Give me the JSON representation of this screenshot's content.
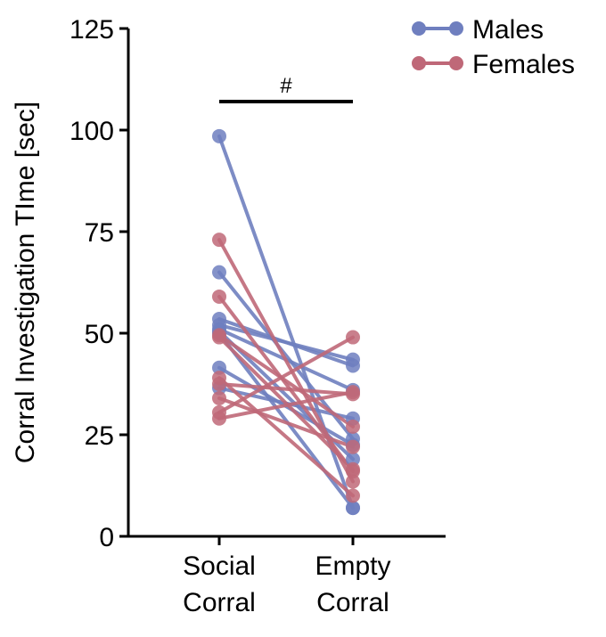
{
  "chart_data": {
    "type": "line",
    "title": "",
    "xlabel": "",
    "ylabel": "Corral Investigation TIme [sec]",
    "categories": [
      {
        "line1": "Social",
        "line2": "Corral"
      },
      {
        "line1": "Empty",
        "line2": "Corral"
      }
    ],
    "ylim": [
      0,
      125
    ],
    "yticks": [
      0,
      25,
      50,
      75,
      100,
      125
    ],
    "legend_position": "top-right",
    "significance": {
      "label": "#",
      "between": [
        0,
        1
      ]
    },
    "series": [
      {
        "name": "Males",
        "color": "#6f7fbf",
        "pairs": [
          [
            98.5,
            7
          ],
          [
            65,
            24
          ],
          [
            53.5,
            42
          ],
          [
            52,
            43.5
          ],
          [
            51,
            36
          ],
          [
            50.5,
            19
          ],
          [
            50,
            7
          ],
          [
            41.5,
            22.5
          ],
          [
            36.5,
            29
          ]
        ]
      },
      {
        "name": "Females",
        "color": "#bf6878",
        "pairs": [
          [
            73,
            13.5
          ],
          [
            59,
            16
          ],
          [
            49.5,
            27
          ],
          [
            49,
            16.5
          ],
          [
            39,
            10
          ],
          [
            37.5,
            35
          ],
          [
            34,
            22
          ],
          [
            30.5,
            49
          ],
          [
            29,
            35.5
          ]
        ]
      }
    ]
  }
}
